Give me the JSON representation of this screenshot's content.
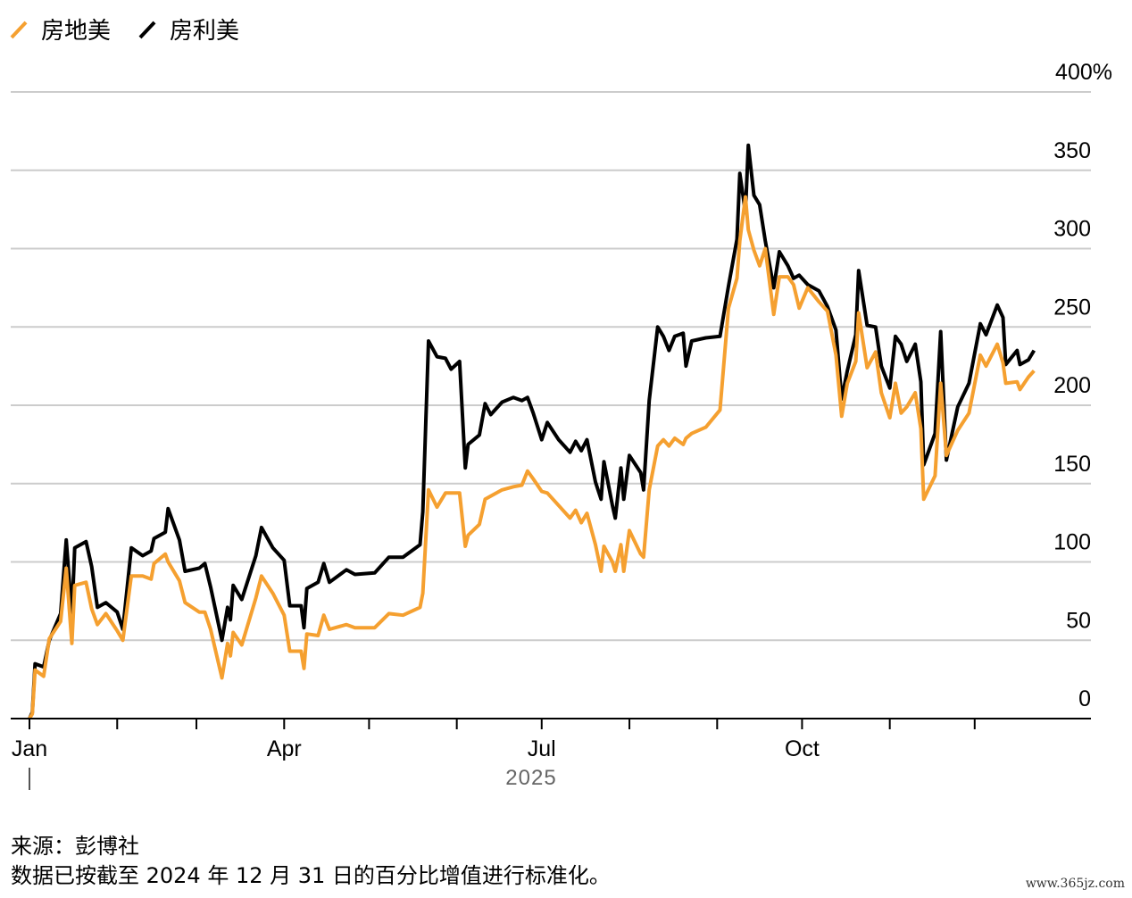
{
  "legend": [
    {
      "label": "房地美",
      "color": "#f5a030"
    },
    {
      "label": "房利美",
      "color": "#000000"
    }
  ],
  "footer": {
    "source": "来源：彭博社",
    "note": "数据已按截至 2024 年 12 月 31 日的百分比增值进行标准化。"
  },
  "watermark": "www.365jz.com",
  "chart_data": {
    "type": "line",
    "title": "",
    "xlabel": "2025",
    "ylabel": "",
    "ylim": [
      0,
      400
    ],
    "xlim": [
      "2025-01-01",
      "2025-12-31"
    ],
    "y_ticks": [
      {
        "value": 0,
        "label": "0"
      },
      {
        "value": 50,
        "label": "50"
      },
      {
        "value": 100,
        "label": "100"
      },
      {
        "value": 150,
        "label": "150"
      },
      {
        "value": 200,
        "label": "200"
      },
      {
        "value": 250,
        "label": "250"
      },
      {
        "value": 300,
        "label": "300"
      },
      {
        "value": 350,
        "label": "350"
      },
      {
        "value": 400,
        "label": "400%"
      }
    ],
    "x_ticks": [
      {
        "date": "2025-01-01",
        "label": "Jan"
      },
      {
        "date": "2025-02-01",
        "label": ""
      },
      {
        "date": "2025-03-01",
        "label": ""
      },
      {
        "date": "2025-04-01",
        "label": "Apr"
      },
      {
        "date": "2025-05-01",
        "label": ""
      },
      {
        "date": "2025-06-01",
        "label": ""
      },
      {
        "date": "2025-07-01",
        "label": "Jul"
      },
      {
        "date": "2025-08-01",
        "label": ""
      },
      {
        "date": "2025-09-01",
        "label": ""
      },
      {
        "date": "2025-10-01",
        "label": "Oct"
      },
      {
        "date": "2025-11-01",
        "label": ""
      },
      {
        "date": "2025-12-01",
        "label": ""
      }
    ],
    "grid": true,
    "legend_position": "top-left",
    "x": [
      "2025-01-01",
      "2025-01-02",
      "2025-01-03",
      "2025-01-06",
      "2025-01-08",
      "2025-01-12",
      "2025-01-14",
      "2025-01-16",
      "2025-01-17",
      "2025-01-21",
      "2025-01-23",
      "2025-01-25",
      "2025-01-28",
      "2025-02-01",
      "2025-02-03",
      "2025-02-06",
      "2025-02-10",
      "2025-02-13",
      "2025-02-14",
      "2025-02-18",
      "2025-02-19",
      "2025-02-23",
      "2025-02-25",
      "2025-03-02",
      "2025-03-04",
      "2025-03-06",
      "2025-03-10",
      "2025-03-12",
      "2025-03-13",
      "2025-03-14",
      "2025-03-17",
      "2025-03-22",
      "2025-03-24",
      "2025-03-28",
      "2025-04-01",
      "2025-04-03",
      "2025-04-07",
      "2025-04-08",
      "2025-04-09",
      "2025-04-13",
      "2025-04-15",
      "2025-04-17",
      "2025-04-23",
      "2025-04-26",
      "2025-05-03",
      "2025-05-08",
      "2025-05-13",
      "2025-05-19",
      "2025-05-20",
      "2025-05-22",
      "2025-05-25",
      "2025-05-28",
      "2025-05-30",
      "2025-06-02",
      "2025-06-04",
      "2025-06-05",
      "2025-06-09",
      "2025-06-11",
      "2025-06-13",
      "2025-06-17",
      "2025-06-21",
      "2025-06-24",
      "2025-06-26",
      "2025-06-28",
      "2025-07-01",
      "2025-07-03",
      "2025-07-07",
      "2025-07-11",
      "2025-07-13",
      "2025-07-15",
      "2025-07-17",
      "2025-07-20",
      "2025-07-22",
      "2025-07-23",
      "2025-07-26",
      "2025-07-27",
      "2025-07-29",
      "2025-07-30",
      "2025-08-01",
      "2025-08-05",
      "2025-08-06",
      "2025-08-08",
      "2025-08-11",
      "2025-08-13",
      "2025-08-15",
      "2025-08-17",
      "2025-08-20",
      "2025-08-21",
      "2025-08-23",
      "2025-08-28",
      "2025-09-02",
      "2025-09-05",
      "2025-09-08",
      "2025-09-09",
      "2025-09-11",
      "2025-09-12",
      "2025-09-14",
      "2025-09-16",
      "2025-09-18",
      "2025-09-21",
      "2025-09-23",
      "2025-09-26",
      "2025-09-28",
      "2025-09-30",
      "2025-10-03",
      "2025-10-07",
      "2025-10-10",
      "2025-10-13",
      "2025-10-15",
      "2025-10-17",
      "2025-10-20",
      "2025-10-21",
      "2025-10-24",
      "2025-10-27",
      "2025-10-29",
      "2025-11-01",
      "2025-11-03",
      "2025-11-05",
      "2025-11-07",
      "2025-11-10",
      "2025-11-12",
      "2025-11-13",
      "2025-11-17",
      "2025-11-19",
      "2025-11-21",
      "2025-11-25",
      "2025-11-29",
      "2025-12-03",
      "2025-12-05",
      "2025-12-09",
      "2025-12-11",
      "2025-12-12",
      "2025-12-16",
      "2025-12-17",
      "2025-12-20",
      "2025-12-22"
    ],
    "series": [
      {
        "name": "房地美",
        "color": "#f5a030",
        "values": [
          0,
          3,
          31,
          27,
          51,
          62,
          96,
          48,
          85,
          87,
          70,
          60,
          67,
          56,
          50,
          91,
          91,
          89,
          99,
          105,
          100,
          88,
          74,
          68,
          68,
          57,
          26,
          48,
          40,
          55,
          47,
          77,
          91,
          80,
          66,
          43,
          43,
          32,
          54,
          53,
          66,
          57,
          60,
          58,
          58,
          67,
          66,
          71,
          80,
          146,
          135,
          144,
          144,
          144,
          110,
          117,
          124,
          140,
          142,
          146,
          148,
          149,
          158,
          153,
          145,
          144,
          136,
          128,
          133,
          125,
          131,
          111,
          94,
          110,
          100,
          94,
          111,
          94,
          120,
          105,
          103,
          146,
          174,
          178,
          174,
          179,
          175,
          179,
          182,
          186,
          197,
          262,
          281,
          305,
          333,
          312,
          299,
          289,
          300,
          258,
          282,
          282,
          277,
          262,
          275,
          266,
          260,
          232,
          193,
          214,
          228,
          259,
          224,
          234,
          208,
          192,
          214,
          195,
          199,
          208,
          185,
          140,
          155,
          214,
          168,
          184,
          195,
          232,
          225,
          239,
          227,
          214,
          215,
          210,
          218,
          222
        ]
      },
      {
        "name": "房利美",
        "color": "#000000",
        "values": [
          0,
          4,
          35,
          33,
          50,
          67,
          114,
          66,
          109,
          113,
          97,
          71,
          74,
          68,
          57,
          109,
          104,
          107,
          115,
          119,
          134,
          114,
          94,
          96,
          99,
          84,
          50,
          71,
          63,
          85,
          76,
          104,
          122,
          109,
          101,
          72,
          72,
          58,
          83,
          87,
          99,
          87,
          95,
          92,
          93,
          103,
          103,
          111,
          132,
          241,
          231,
          230,
          223,
          228,
          160,
          175,
          181,
          201,
          194,
          202,
          205,
          203,
          205,
          195,
          178,
          189,
          178,
          170,
          177,
          171,
          178,
          151,
          140,
          164,
          136,
          128,
          160,
          140,
          168,
          157,
          146,
          203,
          250,
          244,
          235,
          244,
          246,
          225,
          241,
          243,
          244,
          276,
          306,
          348,
          323,
          366,
          334,
          328,
          305,
          275,
          298,
          289,
          281,
          283,
          277,
          273,
          263,
          248,
          204,
          222,
          245,
          286,
          251,
          250,
          225,
          211,
          244,
          239,
          228,
          239,
          215,
          162,
          182,
          247,
          165,
          199,
          214,
          252,
          245,
          264,
          256,
          226,
          235,
          226,
          229,
          235
        ]
      }
    ]
  }
}
